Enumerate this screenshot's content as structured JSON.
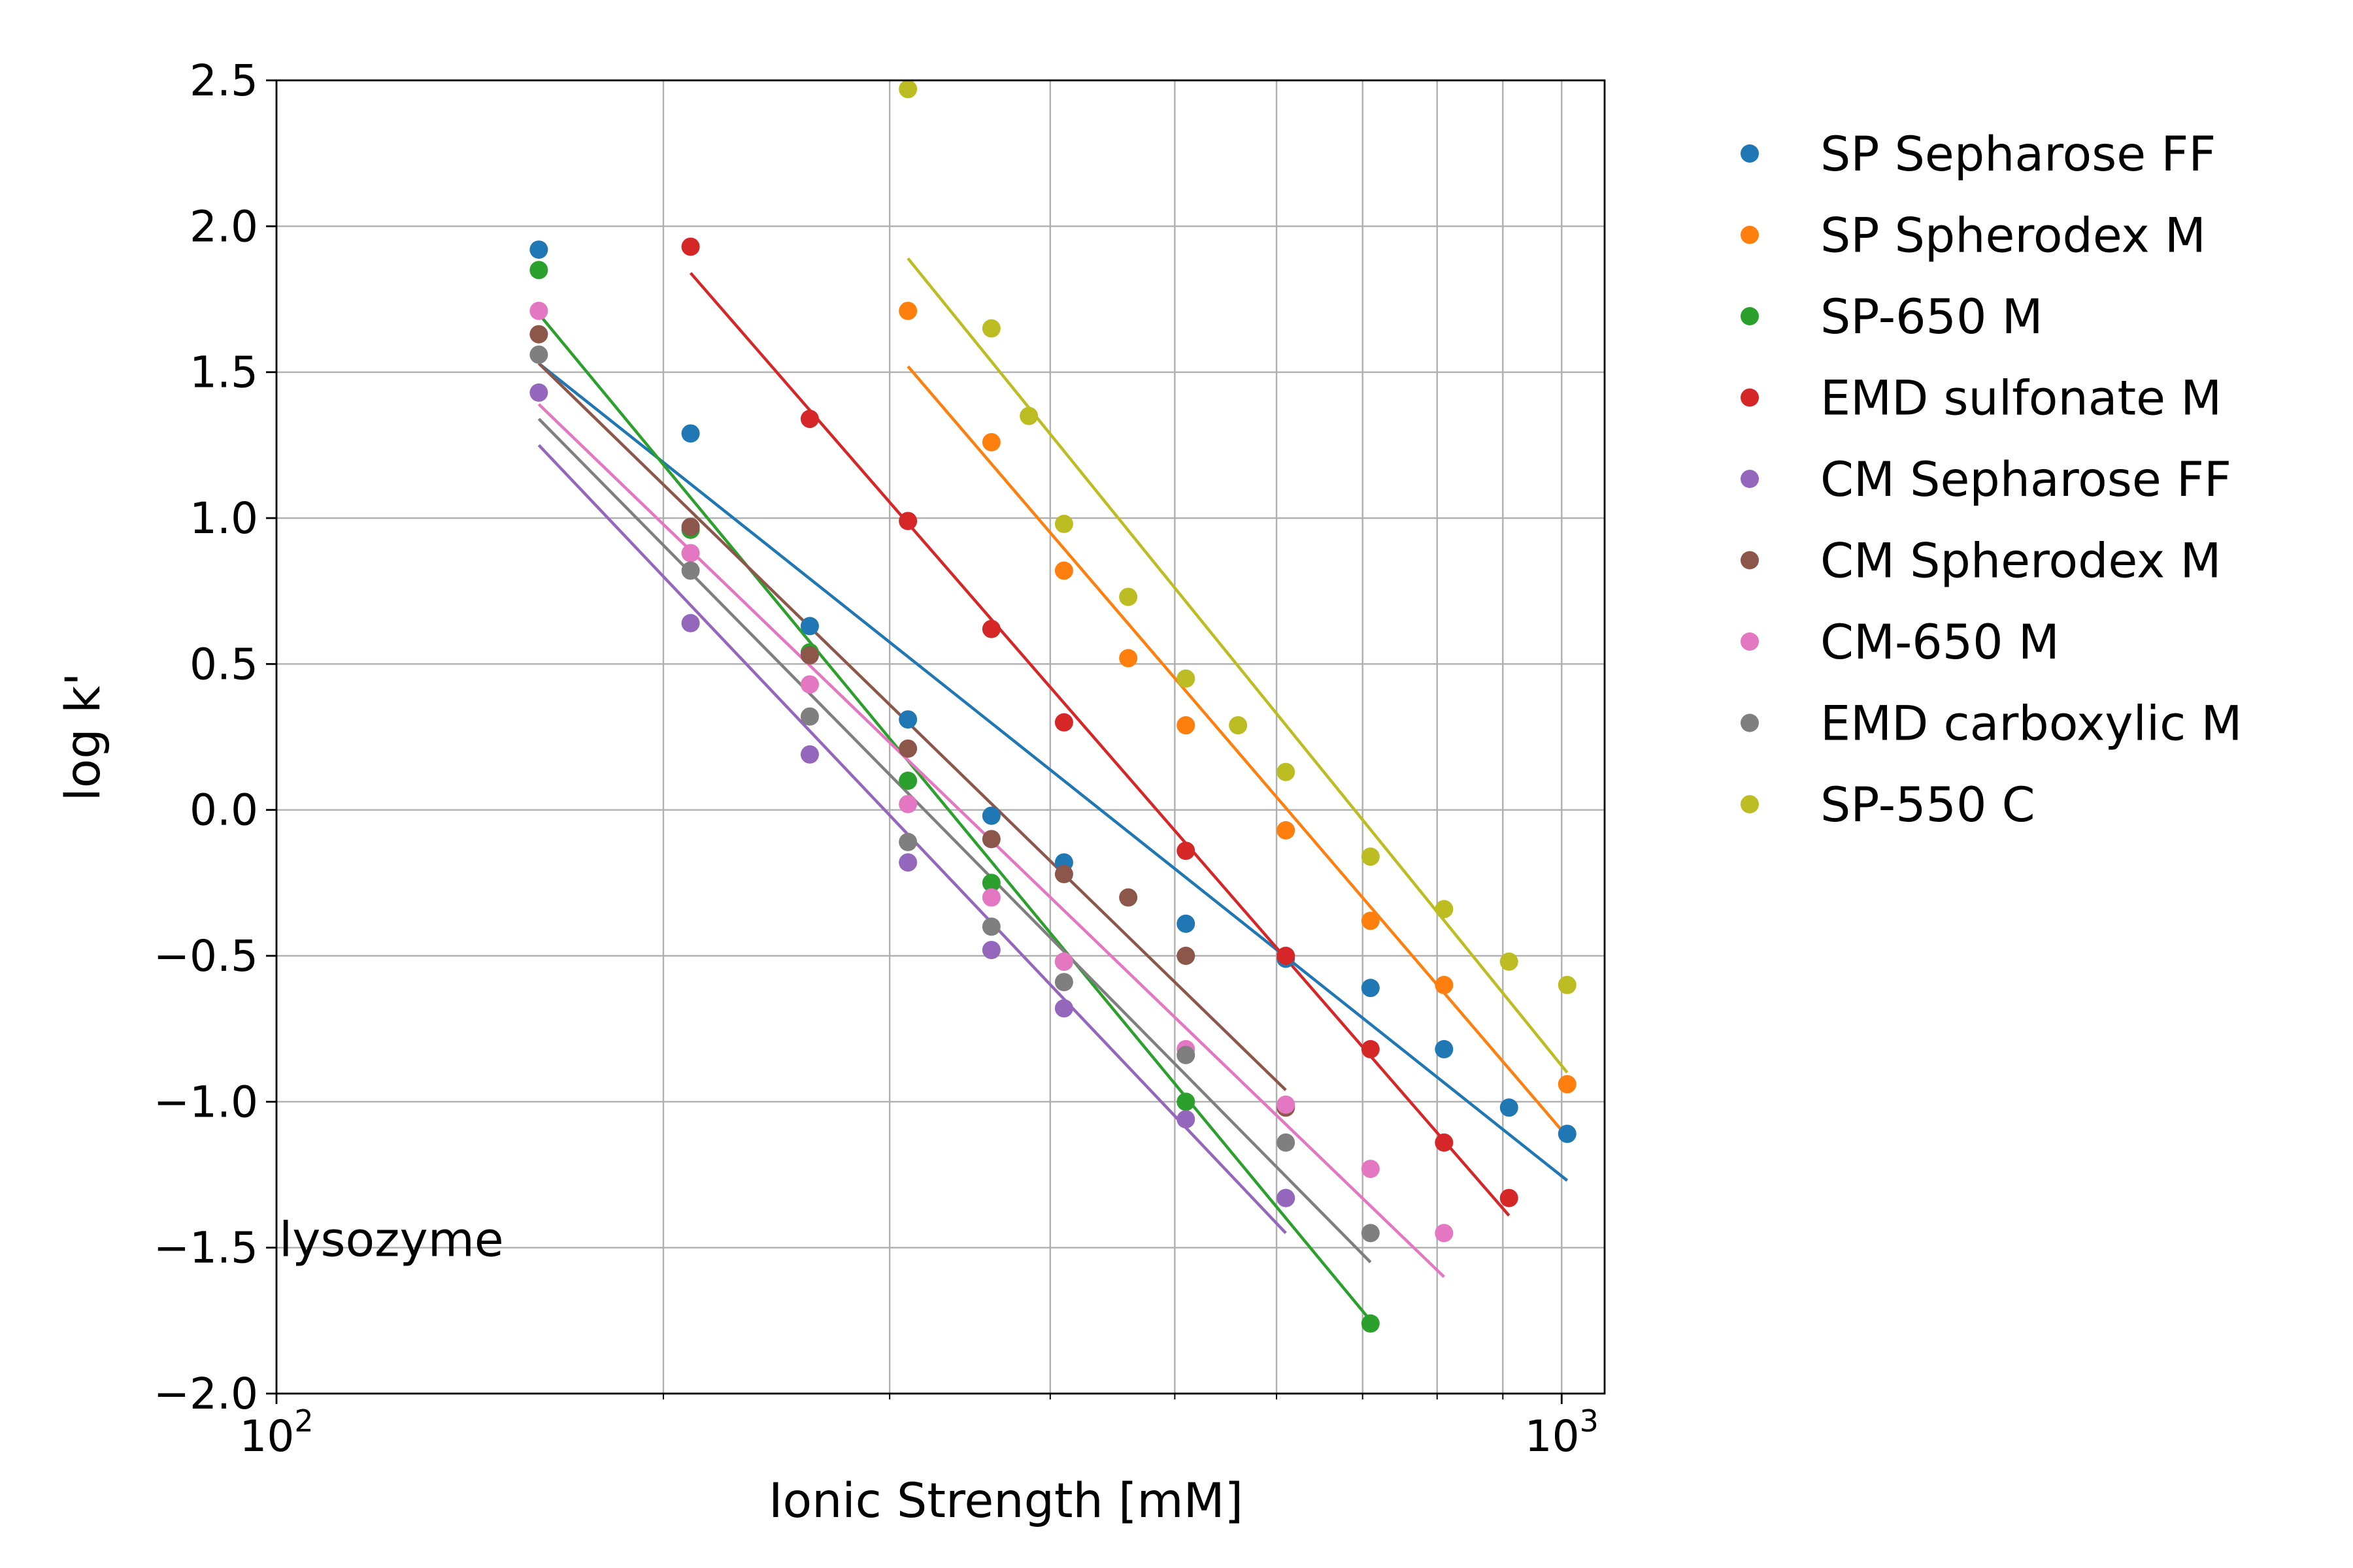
{
  "chart_data": {
    "type": "scatter",
    "xscale": "log",
    "xlabel": "Ionic Strength [mM]",
    "ylabel": "log k'",
    "xlim": [
      100,
      1080
    ],
    "ylim": [
      -2.0,
      2.5
    ],
    "grid": true,
    "legend_position": "outside-right",
    "xticks_major": [
      {
        "value": 100,
        "base": "10",
        "exp": "2"
      },
      {
        "value": 1000,
        "base": "10",
        "exp": "3"
      }
    ],
    "xticks_minor": [
      200,
      300,
      400,
      500,
      600,
      700,
      800,
      900
    ],
    "yticks": [
      {
        "value": 2.5,
        "label": "2.5"
      },
      {
        "value": 2.0,
        "label": "2.0"
      },
      {
        "value": 1.5,
        "label": "1.5"
      },
      {
        "value": 1.0,
        "label": "1.0"
      },
      {
        "value": 0.5,
        "label": "0.5"
      },
      {
        "value": 0.0,
        "label": "0.0"
      },
      {
        "value": -0.5,
        "label": "−0.5"
      },
      {
        "value": -1.0,
        "label": "−1.0"
      },
      {
        "value": -1.5,
        "label": "−1.5"
      },
      {
        "value": -2.0,
        "label": "−2.0"
      }
    ],
    "annotation": {
      "text": "lysozyme",
      "x": 100,
      "y": -1.47
    },
    "series": [
      {
        "name": "SP Sepharose FF",
        "color": "#1f77b4",
        "points": [
          [
            160,
            1.92
          ],
          [
            210,
            1.29
          ],
          [
            260,
            0.63
          ],
          [
            310,
            0.31
          ],
          [
            360,
            -0.02
          ],
          [
            410,
            -0.18
          ],
          [
            510,
            -0.39
          ],
          [
            610,
            -0.51
          ],
          [
            710,
            -0.61
          ],
          [
            810,
            -0.82
          ],
          [
            910,
            -1.02
          ],
          [
            1010,
            -1.11
          ]
        ],
        "fit": [
          [
            160,
            1.53
          ],
          [
            1010,
            -1.27
          ]
        ]
      },
      {
        "name": "SP Spherodex M",
        "color": "#ff7f0e",
        "points": [
          [
            310,
            1.71
          ],
          [
            360,
            1.26
          ],
          [
            410,
            0.82
          ],
          [
            460,
            0.52
          ],
          [
            510,
            0.29
          ],
          [
            610,
            -0.07
          ],
          [
            710,
            -0.38
          ],
          [
            810,
            -0.6
          ],
          [
            1010,
            -0.94
          ]
        ],
        "fit": [
          [
            310,
            1.52
          ],
          [
            1010,
            -1.12
          ]
        ]
      },
      {
        "name": "SP-650 M",
        "color": "#2ca02c",
        "points": [
          [
            160,
            1.85
          ],
          [
            210,
            0.96
          ],
          [
            260,
            0.54
          ],
          [
            310,
            0.1
          ],
          [
            360,
            -0.25
          ],
          [
            410,
            -0.52
          ],
          [
            510,
            -1.0
          ],
          [
            610,
            -1.33
          ],
          [
            710,
            -1.76
          ]
        ],
        "fit": [
          [
            160,
            1.7
          ],
          [
            710,
            -1.75
          ]
        ]
      },
      {
        "name": "EMD sulfonate M",
        "color": "#d62728",
        "points": [
          [
            210,
            1.93
          ],
          [
            260,
            1.34
          ],
          [
            310,
            0.99
          ],
          [
            360,
            0.62
          ],
          [
            410,
            0.3
          ],
          [
            510,
            -0.14
          ],
          [
            610,
            -0.5
          ],
          [
            710,
            -0.82
          ],
          [
            810,
            -1.14
          ],
          [
            910,
            -1.33
          ]
        ],
        "fit": [
          [
            210,
            1.84
          ],
          [
            910,
            -1.39
          ]
        ]
      },
      {
        "name": "CM Sepharose FF",
        "color": "#9467bd",
        "points": [
          [
            160,
            1.43
          ],
          [
            210,
            0.64
          ],
          [
            260,
            0.19
          ],
          [
            310,
            -0.18
          ],
          [
            360,
            -0.48
          ],
          [
            410,
            -0.68
          ],
          [
            510,
            -1.06
          ],
          [
            610,
            -1.33
          ]
        ],
        "fit": [
          [
            160,
            1.25
          ],
          [
            610,
            -1.45
          ]
        ]
      },
      {
        "name": "CM Spherodex M",
        "color": "#8c564b",
        "points": [
          [
            160,
            1.63
          ],
          [
            210,
            0.97
          ],
          [
            260,
            0.53
          ],
          [
            310,
            0.21
          ],
          [
            360,
            -0.1
          ],
          [
            410,
            -0.22
          ],
          [
            460,
            -0.3
          ],
          [
            510,
            -0.5
          ],
          [
            610,
            -1.02
          ]
        ],
        "fit": [
          [
            160,
            1.53
          ],
          [
            610,
            -0.96
          ]
        ]
      },
      {
        "name": "CM-650 M",
        "color": "#e377c2",
        "points": [
          [
            160,
            1.71
          ],
          [
            210,
            0.88
          ],
          [
            260,
            0.43
          ],
          [
            310,
            0.02
          ],
          [
            360,
            -0.3
          ],
          [
            410,
            -0.52
          ],
          [
            510,
            -0.82
          ],
          [
            610,
            -1.01
          ],
          [
            710,
            -1.23
          ],
          [
            810,
            -1.45
          ]
        ],
        "fit": [
          [
            160,
            1.39
          ],
          [
            810,
            -1.6
          ]
        ]
      },
      {
        "name": "EMD carboxylic M",
        "color": "#7f7f7f",
        "points": [
          [
            160,
            1.56
          ],
          [
            210,
            0.82
          ],
          [
            260,
            0.32
          ],
          [
            310,
            -0.11
          ],
          [
            360,
            -0.4
          ],
          [
            410,
            -0.59
          ],
          [
            510,
            -0.84
          ],
          [
            610,
            -1.14
          ],
          [
            710,
            -1.45
          ]
        ],
        "fit": [
          [
            160,
            1.34
          ],
          [
            710,
            -1.55
          ]
        ]
      },
      {
        "name": "SP-550 C",
        "color": "#bcbd22",
        "points": [
          [
            310,
            2.47
          ],
          [
            360,
            1.65
          ],
          [
            385,
            1.35
          ],
          [
            410,
            0.98
          ],
          [
            460,
            0.73
          ],
          [
            510,
            0.45
          ],
          [
            560,
            0.29
          ],
          [
            610,
            0.13
          ],
          [
            710,
            -0.16
          ],
          [
            810,
            -0.34
          ],
          [
            910,
            -0.52
          ],
          [
            1010,
            -0.6
          ]
        ],
        "fit": [
          [
            310,
            1.89
          ],
          [
            1010,
            -0.9
          ]
        ]
      }
    ]
  }
}
